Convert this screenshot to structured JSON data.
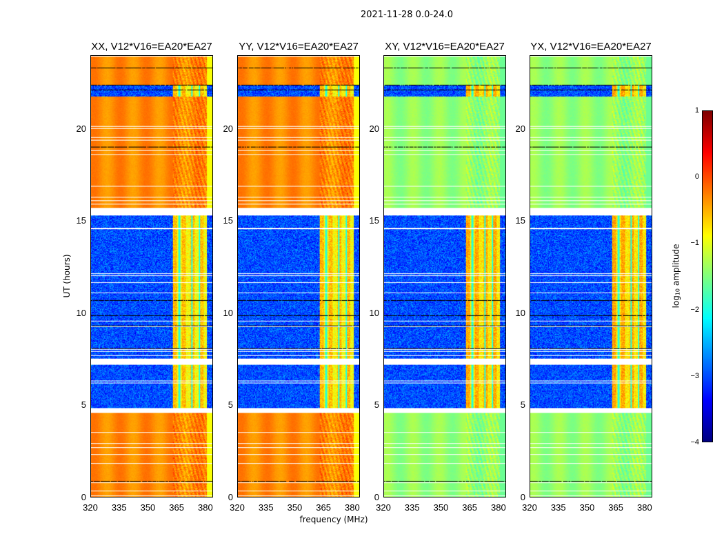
{
  "chart_data": {
    "type": "heatmap",
    "title": "2021-11-28 0.0-24.0",
    "xlabel": "frequency (MHz)",
    "ylabel": "UT (hours)",
    "xlim": [
      320,
      384
    ],
    "ylim": [
      0,
      24
    ],
    "xticks": [
      "320",
      "335",
      "350",
      "365",
      "380"
    ],
    "xtick_values": [
      320,
      335,
      350,
      365,
      380
    ],
    "yticks": [
      "0",
      "5",
      "10",
      "15",
      "20"
    ],
    "ytick_values": [
      0,
      5,
      10,
      15,
      20
    ],
    "colorbar": {
      "label": "log10 amplitude",
      "label_main": "log",
      "label_sub": "10",
      "label_tail": " amplitude",
      "range": [
        -4,
        1
      ],
      "ticks": [
        "1",
        "0",
        "−1",
        "−2",
        "−3",
        "−4"
      ],
      "tick_values": [
        1,
        0,
        -1,
        -2,
        -3,
        -4
      ],
      "colormap": "jet"
    },
    "panels": [
      {
        "title": "XX, V12*V16=EA20*EA27",
        "strong_level": -0.3,
        "weak_level": -3.0,
        "rfi_level": -0.7
      },
      {
        "title": "YY, V12*V16=EA20*EA27",
        "strong_level": -0.3,
        "weak_level": -3.0,
        "rfi_level": -0.7
      },
      {
        "title": "XY, V12*V16=EA20*EA27",
        "strong_level": -1.4,
        "weak_level": -3.0,
        "rfi_level": -0.6
      },
      {
        "title": "YX, V12*V16=EA20*EA27",
        "strong_level": -1.4,
        "weak_level": -3.0,
        "rfi_level": -0.6
      }
    ],
    "time_segments": [
      {
        "start": 0,
        "end": 4.6,
        "state": "strong"
      },
      {
        "start": 4.6,
        "end": 4.85,
        "state": "gap"
      },
      {
        "start": 4.85,
        "end": 7.2,
        "state": "weak"
      },
      {
        "start": 7.2,
        "end": 7.55,
        "state": "gap"
      },
      {
        "start": 7.55,
        "end": 15.35,
        "state": "weak"
      },
      {
        "start": 15.35,
        "end": 15.75,
        "state": "gap"
      },
      {
        "start": 15.75,
        "end": 21.8,
        "state": "strong"
      },
      {
        "start": 21.8,
        "end": 22.4,
        "state": "weak"
      },
      {
        "start": 22.4,
        "end": 24,
        "state": "strong"
      }
    ],
    "rfi_band_mhz": [
      363,
      381
    ]
  }
}
